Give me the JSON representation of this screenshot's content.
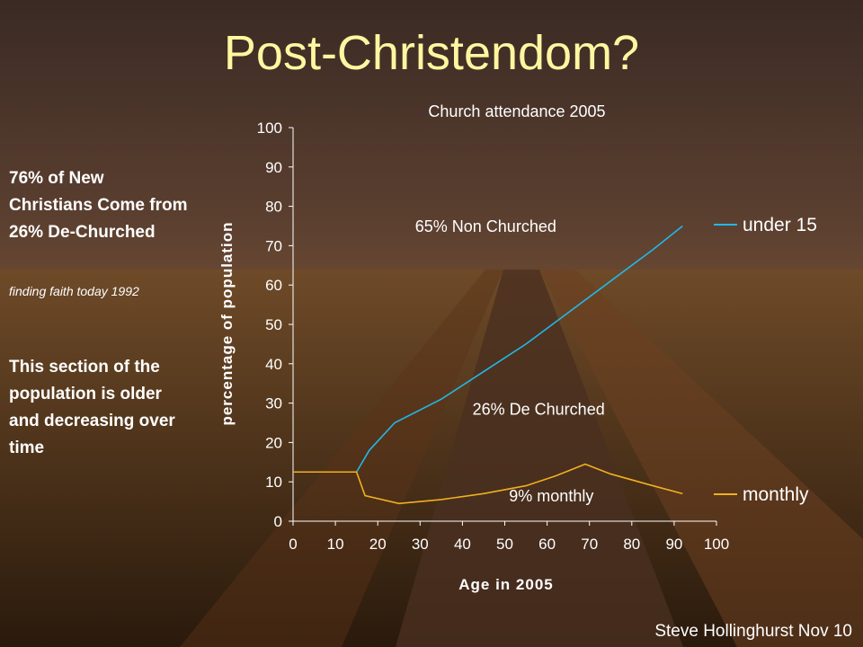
{
  "slide": {
    "title": "Post-Christendom?",
    "side_text_1": "76%  of New Christians Come from 26% De-Churched",
    "side_note": "finding faith today 1992",
    "side_text_2": "This section of the population is older and decreasing over time",
    "footer": "Steve Hollinghurst Nov 10"
  },
  "chart_data": {
    "type": "line",
    "title": "Church attendance 2005",
    "xlabel": "Age in 2005",
    "ylabel": "percentage of population",
    "xlim": [
      0,
      100
    ],
    "ylim": [
      0,
      100
    ],
    "xticks": [
      0,
      10,
      20,
      30,
      40,
      50,
      60,
      70,
      80,
      90,
      100
    ],
    "yticks": [
      0,
      10,
      20,
      30,
      40,
      50,
      60,
      70,
      80,
      90,
      100
    ],
    "legend_position": "right",
    "series": [
      {
        "name": "under 15",
        "color": "#22b8e8",
        "x": [
          0,
          15,
          18,
          24,
          35,
          45,
          55,
          65,
          75,
          85,
          92
        ],
        "y": [
          12.5,
          12.5,
          18,
          25,
          31,
          38,
          45,
          53,
          61,
          69,
          75
        ]
      },
      {
        "name": "monthly",
        "color": "#f0b020",
        "x": [
          0,
          15,
          17,
          25,
          35,
          45,
          55,
          62,
          69,
          75,
          85,
          92
        ],
        "y": [
          12.5,
          12.5,
          6.5,
          4.5,
          5.5,
          7,
          9,
          11.5,
          14.5,
          12,
          9,
          7
        ]
      }
    ],
    "annotations": [
      {
        "text": "65% Non Churched",
        "x": 45.5,
        "y": 73.5
      },
      {
        "text": "26% De Churched",
        "x": 58,
        "y": 27
      },
      {
        "text": "9% monthly",
        "x": 61,
        "y": 5
      }
    ]
  }
}
